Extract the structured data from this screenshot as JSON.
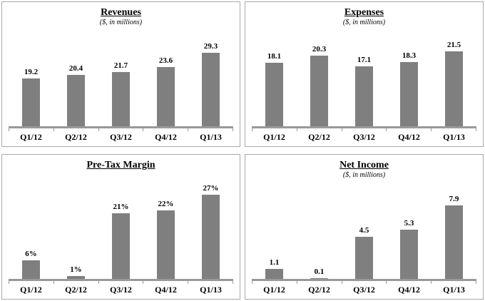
{
  "page": {
    "background": "#ffffff",
    "panel_border_color": "#a9a9a9",
    "text_color": "#000000"
  },
  "chart_data": [
    {
      "id": "revenues",
      "type": "bar",
      "title": "Revenues",
      "subtitle": "($, in millions)",
      "categories": [
        "Q1/12",
        "Q2/12",
        "Q3/12",
        "Q4/12",
        "Q1/13"
      ],
      "values": [
        19.2,
        20.4,
        21.7,
        23.6,
        29.3
      ],
      "value_labels": [
        "19.2",
        "20.4",
        "21.7",
        "23.6",
        "29.3"
      ],
      "ylim": [
        0,
        39
      ],
      "bar_color": "#7f7f7f",
      "axis_color": "#999999",
      "grid": false,
      "legend": "none"
    },
    {
      "id": "expenses",
      "type": "bar",
      "title": "Expenses",
      "subtitle": "($, in millions)",
      "categories": [
        "Q1/12",
        "Q2/12",
        "Q3/12",
        "Q4/12",
        "Q1/13"
      ],
      "values": [
        18.1,
        20.3,
        17.1,
        18.3,
        21.5
      ],
      "value_labels": [
        "18.1",
        "20.3",
        "17.1",
        "18.3",
        "21.5"
      ],
      "ylim": [
        0,
        28
      ],
      "bar_color": "#7f7f7f",
      "axis_color": "#999999",
      "grid": false,
      "legend": "none"
    },
    {
      "id": "pretax-margin",
      "type": "bar",
      "title": "Pre-Tax Margin",
      "subtitle": "",
      "categories": [
        "Q1/12",
        "Q2/12",
        "Q3/12",
        "Q4/12",
        "Q1/13"
      ],
      "values": [
        6,
        1,
        21,
        22,
        27
      ],
      "value_labels": [
        "6%",
        "1%",
        "21%",
        "22%",
        "27%"
      ],
      "ylim": [
        0,
        34
      ],
      "bar_color": "#7f7f7f",
      "axis_color": "#999999",
      "grid": false,
      "legend": "none"
    },
    {
      "id": "net-income",
      "type": "bar",
      "title": "Net Income",
      "subtitle": "($, in millions)",
      "categories": [
        "Q1/12",
        "Q2/12",
        "Q3/12",
        "Q4/12",
        "Q1/13"
      ],
      "values": [
        1.1,
        0.1,
        4.5,
        5.3,
        7.9
      ],
      "value_labels": [
        "1.1",
        "0.1",
        "4.5",
        "5.3",
        "7.9"
      ],
      "ylim": [
        0,
        10.5
      ],
      "bar_color": "#7f7f7f",
      "axis_color": "#999999",
      "grid": false,
      "legend": "none"
    }
  ]
}
